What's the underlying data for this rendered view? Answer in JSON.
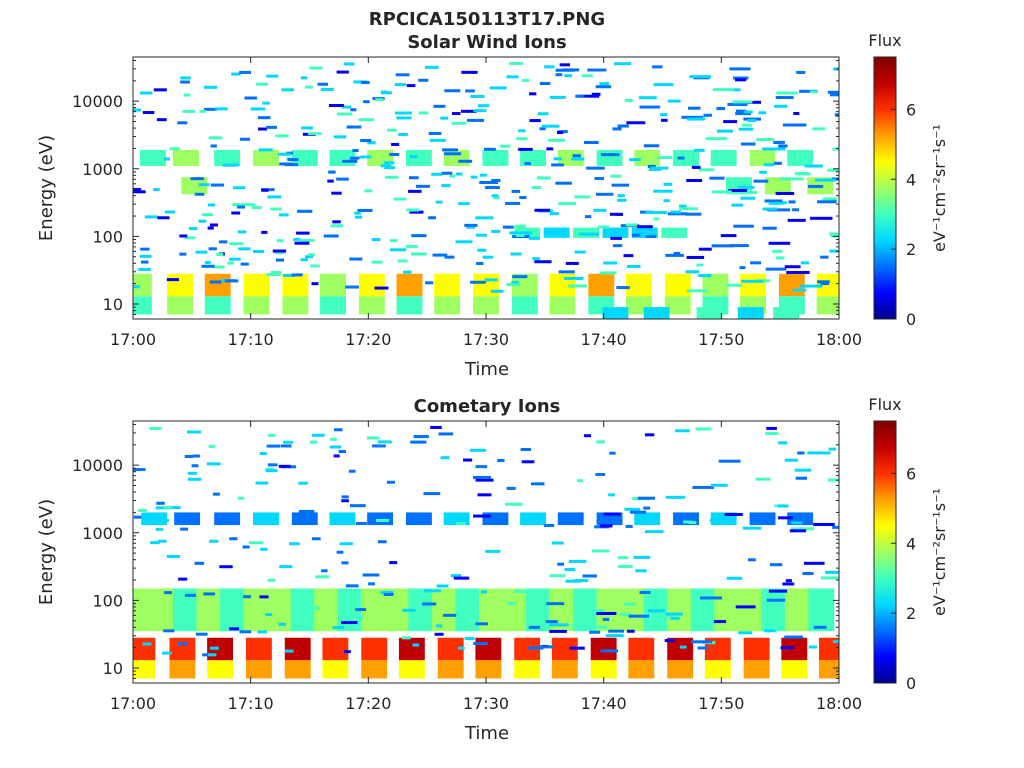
{
  "figure": {
    "title": "RPCICA150113T17.PNG"
  },
  "colormap": [
    "#00008f",
    "#0000ff",
    "#0070ff",
    "#00d8ff",
    "#40ffbf",
    "#a0ff60",
    "#ffff00",
    "#ffa000",
    "#ff3000",
    "#c00000",
    "#800000"
  ],
  "chart_data": [
    {
      "type": "heatmap",
      "title": "Solar Wind Ions",
      "xlabel": "Time",
      "ylabel": "Energy (eV)",
      "yscale": "log",
      "x_range_min": [
        0,
        60
      ],
      "ylim": [
        6,
        45000
      ],
      "xticks": [
        0,
        10,
        20,
        30,
        40,
        50,
        60
      ],
      "xtick_labels": [
        "17:00",
        "17:10",
        "17:20",
        "17:30",
        "17:40",
        "17:50",
        "18:00"
      ],
      "yticks": [
        10,
        100,
        1000,
        10000
      ],
      "ytick_labels": [
        "10",
        "100",
        "1000",
        "10000"
      ],
      "colorbar": {
        "title": "Flux",
        "label_html": "eV⁻¹cm⁻²sr⁻¹s⁻¹",
        "range": [
          0,
          7.5
        ],
        "ticks": [
          0,
          2,
          4,
          6
        ],
        "tick_labels": [
          "0",
          "2",
          "4",
          "6"
        ]
      },
      "bands": [
        {
          "e_lo": 13,
          "e_hi": 28,
          "flux": 4.6,
          "x": [
            0.5,
            4,
            7.2,
            10.5,
            13.8,
            17,
            20.3,
            23.5,
            26.7,
            30,
            33.3,
            36.5,
            39.8,
            43,
            46.3,
            49.5,
            52.7,
            56,
            59.2
          ]
        },
        {
          "e_lo": 7,
          "e_hi": 13,
          "flux": 3.6,
          "x": [
            0.5,
            4,
            7.2,
            10.5,
            13.8,
            17,
            20.3,
            23.5,
            26.7,
            30,
            33.3,
            36.5,
            39.8,
            43,
            46.3,
            49.5,
            52.7,
            56,
            59.2
          ]
        },
        {
          "e_lo": 1100,
          "e_hi": 1900,
          "flux": 3.2,
          "x": [
            1.7,
            4.5,
            8,
            11.3,
            14.6,
            17.8,
            21,
            24.3,
            27.5,
            30.8,
            34,
            37.2,
            40.5,
            43.7,
            47,
            50.2,
            53.5,
            56.7
          ]
        },
        {
          "e_lo": 420,
          "e_hi": 750,
          "flux": 3.4,
          "x": [
            5.2,
            51.5,
            54.8,
            58.4
          ]
        },
        {
          "e_lo": 95,
          "e_hi": 135,
          "flux": 2.6,
          "x": [
            33.5,
            36,
            38.5,
            41,
            43.5,
            46
          ]
        },
        {
          "e_lo": 6,
          "e_hi": 9,
          "flux": 2.4,
          "x": [
            41,
            44.5,
            49,
            52.5,
            55.5
          ]
        }
      ],
      "scatter_seed": 11,
      "scatter_count": 480
    },
    {
      "type": "heatmap",
      "title": "Cometary Ions",
      "xlabel": "Time",
      "ylabel": "Energy (eV)",
      "yscale": "log",
      "x_range_min": [
        0,
        60
      ],
      "ylim": [
        6,
        45000
      ],
      "xticks": [
        0,
        10,
        20,
        30,
        40,
        50,
        60
      ],
      "xtick_labels": [
        "17:00",
        "17:10",
        "17:20",
        "17:30",
        "17:40",
        "17:50",
        "18:00"
      ],
      "yticks": [
        10,
        100,
        1000,
        10000
      ],
      "ytick_labels": [
        "10",
        "100",
        "1000",
        "10000"
      ],
      "colorbar": {
        "title": "Flux",
        "label_html": "eV⁻¹cm⁻²sr⁻¹s⁻¹",
        "range": [
          0,
          7.5
        ],
        "ticks": [
          0,
          2,
          4,
          6
        ],
        "tick_labels": [
          "0",
          "2",
          "4",
          "6"
        ]
      },
      "bands": [
        {
          "e_lo": 13,
          "e_hi": 28,
          "flux": 6.2,
          "x": [
            0.8,
            4.2,
            7.4,
            10.7,
            14,
            17.2,
            20.5,
            23.7,
            27,
            30.2,
            33.5,
            36.7,
            40,
            43.2,
            46.5,
            49.7,
            53,
            56.2,
            59.4
          ]
        },
        {
          "e_lo": 7,
          "e_hi": 13,
          "flux": 5.0,
          "x": [
            0.8,
            4.2,
            7.4,
            10.7,
            14,
            17.2,
            20.5,
            23.7,
            27,
            30.2,
            33.5,
            36.7,
            40,
            43.2,
            46.5,
            49.7,
            53,
            56.2,
            59.4
          ]
        },
        {
          "e_lo": 35,
          "e_hi": 150,
          "flux": 3.4,
          "x": [
            0.5,
            2.5,
            4.5,
            6.5,
            8.5,
            10.5,
            12.5,
            14.5,
            16.5,
            18.5,
            20.5,
            22.5,
            24.5,
            26.5,
            28.5,
            30.5,
            32.5,
            34.5,
            36.5,
            38.5,
            40.5,
            42.5,
            44.5,
            46.5,
            48.5,
            50.5,
            52.5,
            54.5,
            56.5,
            58.5
          ]
        },
        {
          "e_lo": 1300,
          "e_hi": 2000,
          "flux": 1.8,
          "x": [
            1.8,
            4.6,
            8,
            11.3,
            14.6,
            17.8,
            21,
            24.3,
            27.5,
            30.8,
            34,
            37.2,
            40.5,
            43.7,
            47,
            50.2,
            53.5,
            56.7
          ]
        }
      ],
      "scatter_seed": 29,
      "scatter_count": 260
    }
  ]
}
